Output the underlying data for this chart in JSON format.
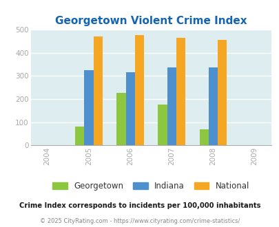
{
  "title": "Georgetown Violent Crime Index",
  "years": [
    2005,
    2006,
    2007,
    2008
  ],
  "x_ticks": [
    2004,
    2005,
    2006,
    2007,
    2008,
    2009
  ],
  "georgetown": [
    80,
    225,
    175,
    68
  ],
  "indiana": [
    325,
    315,
    335,
    335
  ],
  "national": [
    470,
    475,
    465,
    455
  ],
  "colors": {
    "georgetown": "#8dc63f",
    "indiana": "#4e8fce",
    "national": "#f5a623"
  },
  "ylim": [
    0,
    500
  ],
  "yticks": [
    0,
    100,
    200,
    300,
    400,
    500
  ],
  "bg_color": "#deeef0",
  "bar_width": 0.22,
  "legend_labels": [
    "Georgetown",
    "Indiana",
    "National"
  ],
  "footnote1": "Crime Index corresponds to incidents per 100,000 inhabitants",
  "footnote2": "© 2025 CityRating.com - https://www.cityrating.com/crime-statistics/",
  "title_color": "#1464b4",
  "footnote1_color": "#1a1a1a",
  "footnote2_color": "#888888",
  "tick_color": "#aaaaaa"
}
